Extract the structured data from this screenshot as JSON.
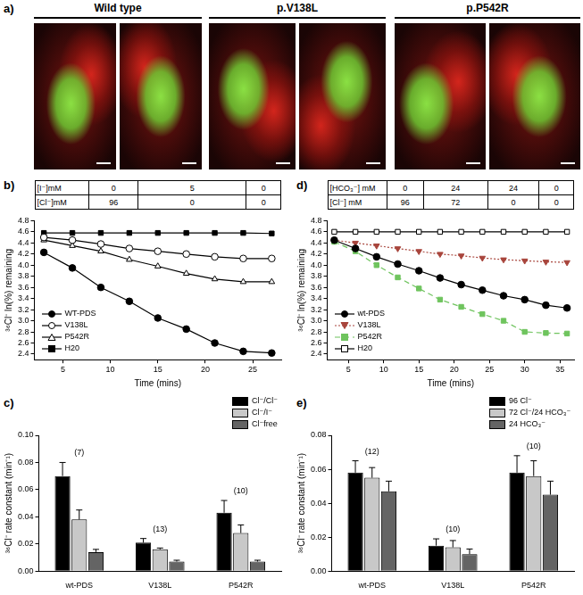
{
  "images": {
    "label": "a)",
    "groups": [
      "Wild type",
      "p.V138L",
      "p.P542R"
    ]
  },
  "chart_data": [
    {
      "type": "line",
      "title": "b)",
      "table": {
        "rows": [
          [
            "[I⁻]mM",
            "0",
            "5",
            "0"
          ],
          [
            "[Cl⁻]mM",
            "96",
            "0",
            "0"
          ]
        ]
      },
      "x_label": "Time (mins)",
      "y_label": "³⁶Cl⁻ ln(%) remaining",
      "x": [
        3,
        6,
        9,
        12,
        15,
        18,
        21,
        24,
        27
      ],
      "series": [
        {
          "name": "WT-PDS",
          "color": "#000000",
          "marker": "circle",
          "line_style": "solid",
          "values": [
            4.23,
            3.95,
            3.6,
            3.35,
            3.05,
            2.85,
            2.6,
            2.45,
            2.42
          ]
        },
        {
          "name": "V138L",
          "color": "#000000",
          "marker": "open_circle",
          "line_style": "solid",
          "values": [
            4.5,
            4.45,
            4.38,
            4.3,
            4.25,
            4.2,
            4.15,
            4.12,
            4.12
          ]
        },
        {
          "name": "P542R",
          "color": "#000000",
          "marker": "open_triangle",
          "line_style": "solid",
          "values": [
            4.45,
            4.35,
            4.25,
            4.1,
            3.98,
            3.85,
            3.75,
            3.7,
            3.7
          ]
        },
        {
          "name": "H20",
          "color": "#000000",
          "marker": "square",
          "line_style": "solid",
          "values": [
            4.58,
            4.58,
            4.58,
            4.58,
            4.58,
            4.58,
            4.58,
            4.58,
            4.57
          ]
        }
      ],
      "xlim": [
        2,
        28
      ],
      "xticks": [
        5,
        10,
        15,
        20,
        25
      ],
      "ylim": [
        2.3,
        4.8
      ],
      "yticks": [
        2.4,
        2.6,
        2.8,
        {
          "value": 3,
          "label": "3.0"
        },
        3.2,
        3.4,
        3.6,
        3.8,
        {
          "value": 4,
          "label": "4.0"
        },
        4.2,
        4.4,
        4.6,
        4.8
      ],
      "grid": false,
      "legend": "bottom-left"
    },
    {
      "type": "bar",
      "title": "c)",
      "y_label": "³⁶Cl⁻ rate constant (min⁻¹)",
      "categories": [
        "wt-PDS",
        "V138L",
        "P542R"
      ],
      "series": [
        {
          "name": "Cl⁻/Cl⁻",
          "color": "#000000",
          "values": [
            0.07,
            0.021,
            0.043
          ],
          "errors": [
            0.01,
            0.003,
            0.009
          ]
        },
        {
          "name": "Cl⁻/I⁻",
          "color": "#c8c8c8",
          "values": [
            0.038,
            0.016,
            0.028
          ],
          "errors": [
            0.007,
            0.001,
            0.006
          ]
        },
        {
          "name": "Cl⁻free",
          "color": "#646464",
          "values": [
            0.014,
            0.007,
            0.007
          ],
          "errors": [
            0.002,
            0.001,
            0.001
          ]
        }
      ],
      "annotations": [
        {
          "x": "wt-PDS",
          "text": "(7)"
        },
        {
          "x": "V138L",
          "text": "(13)"
        },
        {
          "x": "P542R",
          "text": "(10)"
        }
      ],
      "ylim": [
        0,
        0.1
      ],
      "yticks": [
        {
          "value": 0,
          "label": "0.00"
        },
        {
          "value": 0.02,
          "label": "0.02"
        },
        {
          "value": 0.04,
          "label": "0.04"
        },
        {
          "value": 0.06,
          "label": "0.06"
        },
        {
          "value": 0.08,
          "label": "0.08"
        },
        {
          "value": 0.1,
          "label": "0.10"
        }
      ],
      "grid": false,
      "legend": "top-right"
    },
    {
      "type": "line",
      "title": "d)",
      "table": {
        "rows": [
          [
            "[HCO₃⁻] mM",
            "0",
            "24",
            "24",
            "0"
          ],
          [
            "[Cl⁻] mM",
            "96",
            "72",
            "0",
            "0"
          ]
        ]
      },
      "x_label": "Time (mins)",
      "y_label": "³⁶Cl⁻ ln(%) remaining",
      "x": [
        3,
        6,
        9,
        12,
        15,
        18,
        21,
        24,
        27,
        30,
        33,
        36
      ],
      "series": [
        {
          "name": "wt-PDS",
          "color": "#000000",
          "marker": "circle",
          "line_style": "solid",
          "values": [
            4.45,
            4.3,
            4.15,
            4.02,
            3.9,
            3.77,
            3.65,
            3.55,
            3.45,
            3.38,
            3.28,
            3.23
          ]
        },
        {
          "name": "V138L",
          "color": "#a8453c",
          "marker": "inverted_triangle",
          "line_style": "dotted",
          "values": [
            4.45,
            4.4,
            4.35,
            4.3,
            4.25,
            4.2,
            4.17,
            4.13,
            4.1,
            4.08,
            4.06,
            4.05
          ]
        },
        {
          "name": "P542R",
          "color": "#6fc45e",
          "marker": "square",
          "line_style": "dashed",
          "values": [
            4.42,
            4.25,
            4.0,
            3.78,
            3.58,
            3.38,
            3.25,
            3.12,
            3.0,
            2.8,
            2.78,
            2.77
          ]
        },
        {
          "name": "H20",
          "color": "#000000",
          "marker": "open_square",
          "line_style": "solid",
          "values": [
            4.6,
            4.6,
            4.6,
            4.6,
            4.6,
            4.6,
            4.6,
            4.6,
            4.6,
            4.6,
            4.6,
            4.6
          ]
        }
      ],
      "xlim": [
        2,
        37
      ],
      "xticks": [
        5,
        10,
        15,
        20,
        25,
        30,
        35
      ],
      "ylim": [
        2.3,
        4.8
      ],
      "yticks": [
        2.4,
        2.6,
        2.8,
        {
          "value": 3,
          "label": "3.0"
        },
        3.2,
        3.4,
        3.6,
        3.8,
        {
          "value": 4,
          "label": "4.0"
        },
        4.2,
        4.4,
        4.6,
        4.8
      ],
      "grid": false,
      "legend": "bottom-left"
    },
    {
      "type": "bar",
      "title": "e)",
      "y_label": "³⁶Cl⁻ rate constant (min⁻¹)",
      "categories": [
        "wt-PDS",
        "V138L",
        "P542R"
      ],
      "series": [
        {
          "name": "96 Cl⁻",
          "color": "#000000",
          "values": [
            0.058,
            0.015,
            0.058
          ],
          "errors": [
            0.007,
            0.004,
            0.01
          ]
        },
        {
          "name": "72 Cl⁻/24 HCO₃⁻",
          "color": "#c8c8c8",
          "values": [
            0.055,
            0.014,
            0.056
          ],
          "errors": [
            0.006,
            0.004,
            0.009
          ]
        },
        {
          "name": "24 HCO₃⁻",
          "color": "#646464",
          "values": [
            0.047,
            0.01,
            0.045
          ],
          "errors": [
            0.006,
            0.003,
            0.008
          ]
        }
      ],
      "annotations": [
        {
          "x": "wt-PDS",
          "text": "(12)"
        },
        {
          "x": "V138L",
          "text": "(10)"
        },
        {
          "x": "P542R",
          "text": "(10)"
        }
      ],
      "ylim": [
        0,
        0.08
      ],
      "yticks": [
        {
          "value": 0,
          "label": "0.00"
        },
        {
          "value": 0.02,
          "label": "0.02"
        },
        {
          "value": 0.04,
          "label": "0.04"
        },
        {
          "value": 0.06,
          "label": "0.06"
        },
        {
          "value": 0.08,
          "label": "0.08"
        }
      ],
      "grid": false,
      "legend": "top-right"
    }
  ]
}
